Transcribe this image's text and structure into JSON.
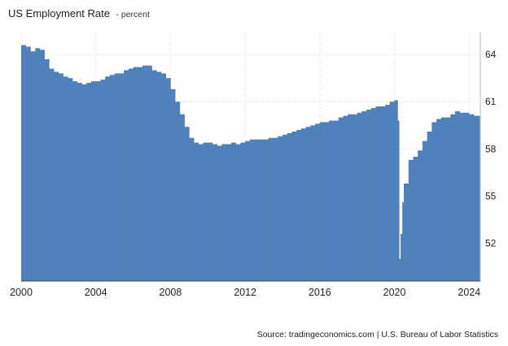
{
  "title": {
    "main": "US Employment Rate",
    "unit": "- percent"
  },
  "source": "Source: tradingeconomics.com | U.S. Bureau of Labor Statistics",
  "chart_data": {
    "type": "bar",
    "title": "US Employment Rate",
    "ylabel": "percent",
    "color": "#4f81bd",
    "x_range": [
      2000,
      2024.6
    ],
    "ylim": [
      49.6,
      65.4
    ],
    "x_ticks": [
      "2000",
      "2004",
      "2008",
      "2012",
      "2016",
      "2020",
      "2024"
    ],
    "y_ticks": [
      "64",
      "61",
      "58",
      "55",
      "52"
    ],
    "grid": true,
    "x": [
      2000.0,
      2000.25,
      2000.5,
      2000.75,
      2001.0,
      2001.25,
      2001.5,
      2001.75,
      2002.0,
      2002.25,
      2002.5,
      2002.75,
      2003.0,
      2003.25,
      2003.5,
      2003.75,
      2004.0,
      2004.25,
      2004.5,
      2004.75,
      2005.0,
      2005.25,
      2005.5,
      2005.75,
      2006.0,
      2006.25,
      2006.5,
      2006.75,
      2007.0,
      2007.25,
      2007.5,
      2007.75,
      2008.0,
      2008.25,
      2008.5,
      2008.75,
      2009.0,
      2009.25,
      2009.5,
      2009.75,
      2010.0,
      2010.25,
      2010.5,
      2010.75,
      2011.0,
      2011.25,
      2011.5,
      2011.75,
      2012.0,
      2012.25,
      2012.5,
      2012.75,
      2013.0,
      2013.25,
      2013.5,
      2013.75,
      2014.0,
      2014.25,
      2014.5,
      2014.75,
      2015.0,
      2015.25,
      2015.5,
      2015.75,
      2016.0,
      2016.25,
      2016.5,
      2016.75,
      2017.0,
      2017.25,
      2017.5,
      2017.75,
      2018.0,
      2018.25,
      2018.5,
      2018.75,
      2019.0,
      2019.25,
      2019.5,
      2019.75,
      2020.0,
      2020.17,
      2020.25,
      2020.33,
      2020.42,
      2020.5,
      2020.75,
      2021.0,
      2021.25,
      2021.5,
      2021.75,
      2022.0,
      2022.25,
      2022.5,
      2022.75,
      2023.0,
      2023.25,
      2023.5,
      2023.75,
      2024.0,
      2024.25,
      2024.5
    ],
    "values": [
      64.6,
      64.5,
      64.2,
      64.4,
      64.3,
      63.7,
      63.1,
      62.9,
      62.8,
      62.6,
      62.5,
      62.3,
      62.2,
      62.1,
      62.2,
      62.3,
      62.3,
      62.4,
      62.6,
      62.7,
      62.8,
      62.8,
      63.0,
      63.1,
      63.2,
      63.2,
      63.3,
      63.3,
      63.0,
      62.9,
      62.8,
      62.5,
      61.8,
      61.0,
      60.2,
      59.4,
      58.7,
      58.4,
      58.3,
      58.4,
      58.4,
      58.3,
      58.2,
      58.3,
      58.3,
      58.4,
      58.3,
      58.4,
      58.5,
      58.6,
      58.6,
      58.6,
      58.6,
      58.7,
      58.7,
      58.8,
      58.9,
      59.0,
      59.1,
      59.2,
      59.3,
      59.4,
      59.5,
      59.6,
      59.7,
      59.7,
      59.8,
      59.8,
      60.0,
      60.1,
      60.2,
      60.2,
      60.3,
      60.4,
      60.5,
      60.6,
      60.7,
      60.7,
      60.8,
      61.0,
      61.1,
      59.8,
      51.0,
      52.6,
      54.6,
      55.8,
      57.3,
      57.5,
      57.9,
      58.5,
      59.1,
      59.7,
      59.9,
      60.0,
      60.0,
      60.2,
      60.4,
      60.3,
      60.3,
      60.2,
      60.1,
      60.1
    ]
  }
}
